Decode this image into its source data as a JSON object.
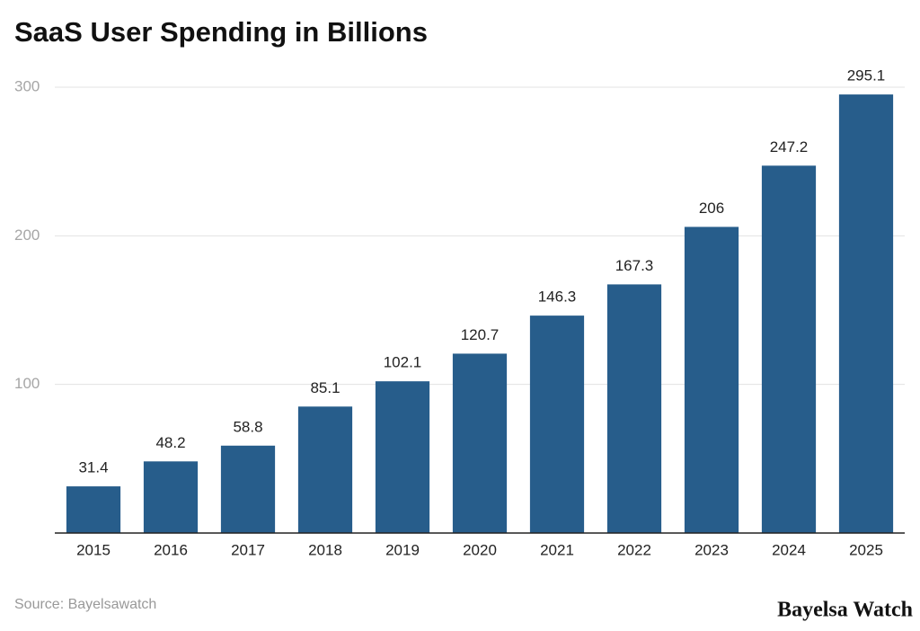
{
  "chart_data": {
    "type": "bar",
    "title": "SaaS User Spending in Billions",
    "categories": [
      "2015",
      "2016",
      "2017",
      "2018",
      "2019",
      "2020",
      "2021",
      "2022",
      "2023",
      "2024",
      "2025"
    ],
    "values": [
      31.4,
      48.2,
      58.8,
      85.1,
      102.1,
      120.7,
      146.3,
      167.3,
      206,
      247.2,
      295.1
    ],
    "color": "#275d8b",
    "ylim": [
      0,
      300
    ],
    "yticks": [
      100,
      200,
      300
    ],
    "grid": true,
    "source": "Source: Bayelsawatch",
    "brand": "Bayelsa Watch"
  }
}
